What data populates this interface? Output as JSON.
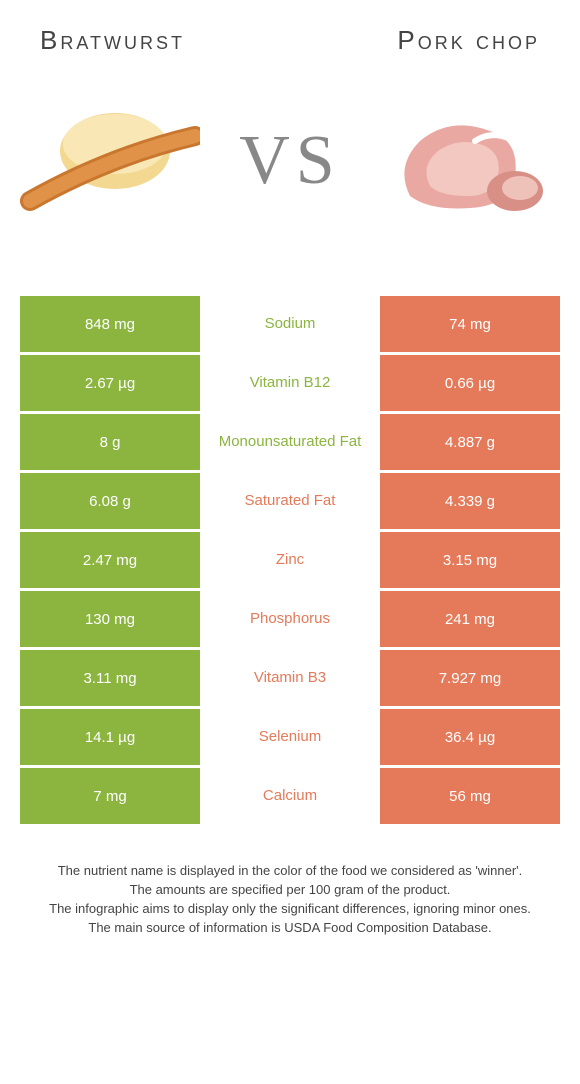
{
  "left": {
    "title": "Bratwurst",
    "color": "#8bb53f"
  },
  "right": {
    "title": "Pork chop",
    "color": "#e57a5a"
  },
  "vs": "VS",
  "rows": [
    {
      "nutrient": "Sodium",
      "left": "848 mg",
      "right": "74 mg",
      "winner": "left"
    },
    {
      "nutrient": "Vitamin B12",
      "left": "2.67 µg",
      "right": "0.66 µg",
      "winner": "left"
    },
    {
      "nutrient": "Monounsaturated Fat",
      "left": "8 g",
      "right": "4.887 g",
      "winner": "left"
    },
    {
      "nutrient": "Saturated Fat",
      "left": "6.08 g",
      "right": "4.339 g",
      "winner": "right"
    },
    {
      "nutrient": "Zinc",
      "left": "2.47 mg",
      "right": "3.15 mg",
      "winner": "right"
    },
    {
      "nutrient": "Phosphorus",
      "left": "130 mg",
      "right": "241 mg",
      "winner": "right"
    },
    {
      "nutrient": "Vitamin B3",
      "left": "3.11 mg",
      "right": "7.927 mg",
      "winner": "right"
    },
    {
      "nutrient": "Selenium",
      "left": "14.1 µg",
      "right": "36.4 µg",
      "winner": "right"
    },
    {
      "nutrient": "Calcium",
      "left": "7 mg",
      "right": "56 mg",
      "winner": "right"
    }
  ],
  "footer": [
    "The nutrient name is displayed in the color of the food we considered as 'winner'.",
    "The amounts are specified per 100 gram of the product.",
    "The infographic aims to display only the significant differences, ignoring minor ones.",
    "The main source of information is USDA Food Composition Database."
  ]
}
